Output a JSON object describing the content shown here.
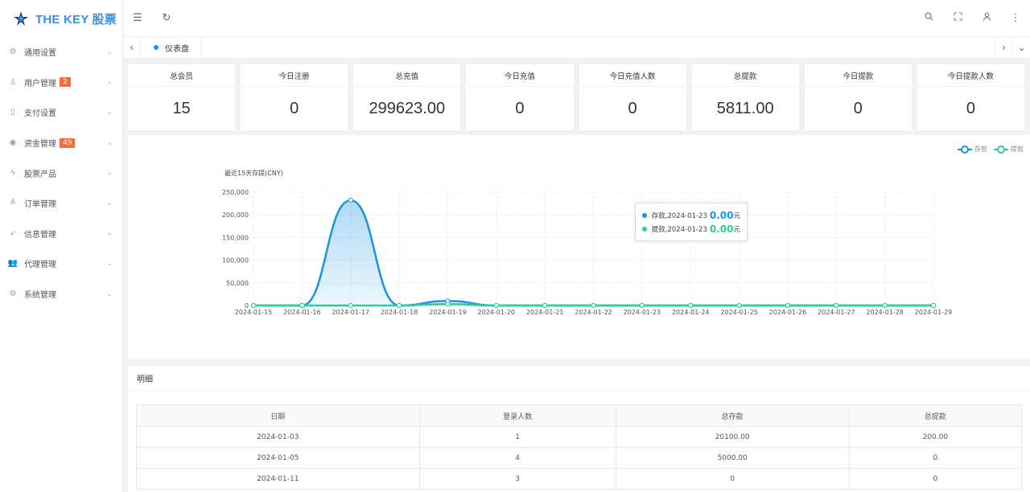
{
  "app": {
    "title": "THE KEY 股票"
  },
  "colors": {
    "accent": "#1890ff",
    "deposit": "#1a93e6",
    "withdraw": "#2ecc9a",
    "badge": "#f56c3a"
  },
  "sidebar": {
    "items": [
      {
        "label": "通用设置",
        "icon": "gear-icon",
        "badge": ""
      },
      {
        "label": "用户管理",
        "icon": "user-icon",
        "badge": "2"
      },
      {
        "label": "支付设置",
        "icon": "phone-icon",
        "badge": ""
      },
      {
        "label": "资金管理",
        "icon": "fund-icon",
        "badge": "49"
      },
      {
        "label": "股票产品",
        "icon": "pulse-icon",
        "badge": ""
      },
      {
        "label": "订单管理",
        "icon": "order-icon",
        "badge": ""
      },
      {
        "label": "信息管理",
        "icon": "send-icon",
        "badge": ""
      },
      {
        "label": "代理管理",
        "icon": "team-icon",
        "badge": ""
      },
      {
        "label": "系统管理",
        "icon": "settings-icon",
        "badge": ""
      }
    ]
  },
  "tabs": [
    {
      "label": "仪表盘",
      "active": true
    }
  ],
  "stats": [
    {
      "title": "总会员",
      "value": "15"
    },
    {
      "title": "今日注册",
      "value": "0"
    },
    {
      "title": "总充值",
      "value": "299623.00"
    },
    {
      "title": "今日充值",
      "value": "0"
    },
    {
      "title": "今日充值人数",
      "value": "0"
    },
    {
      "title": "总提款",
      "value": "5811.00"
    },
    {
      "title": "今日提款",
      "value": "0"
    },
    {
      "title": "今日提款人数",
      "value": "0"
    }
  ],
  "chart_data": {
    "type": "line",
    "title": "最近15天存提(CNY)",
    "x": [
      "2024-01-15",
      "2024-01-16",
      "2024-01-17",
      "2024-01-18",
      "2024-01-19",
      "2024-01-20",
      "2024-01-21",
      "2024-01-22",
      "2024-01-23",
      "2024-01-24",
      "2024-01-25",
      "2024-01-26",
      "2024-01-27",
      "2024-01-28",
      "2024-01-29"
    ],
    "series": [
      {
        "name": "存款",
        "values": [
          0,
          0,
          232000,
          0,
          10000,
          0,
          0,
          0,
          0,
          0,
          0,
          0,
          0,
          0,
          0
        ]
      },
      {
        "name": "提款",
        "values": [
          0,
          0,
          0,
          0,
          3000,
          0,
          0,
          0,
          0,
          0,
          0,
          0,
          0,
          0,
          0
        ]
      }
    ],
    "yticks": [
      "250,000",
      "200,000",
      "150,000",
      "100,000",
      "50,000",
      "0"
    ],
    "ylim": [
      0,
      250000
    ],
    "grid": true,
    "legend": "top-right",
    "tooltip": {
      "rows": [
        {
          "label": "存款,2024-01-23",
          "value": "0.00",
          "unit": "元"
        },
        {
          "label": "提款,2024-01-23",
          "value": "0.00",
          "unit": "元"
        }
      ]
    }
  },
  "detail": {
    "title": "明细",
    "columns": [
      "日期",
      "登录人数",
      "总存款",
      "总提款"
    ],
    "rows": [
      [
        "2024-01-03",
        "1",
        "20100.00",
        "200.00"
      ],
      [
        "2024-01-05",
        "4",
        "5000.00",
        "0"
      ],
      [
        "2024-01-11",
        "3",
        "0",
        "0"
      ]
    ]
  }
}
